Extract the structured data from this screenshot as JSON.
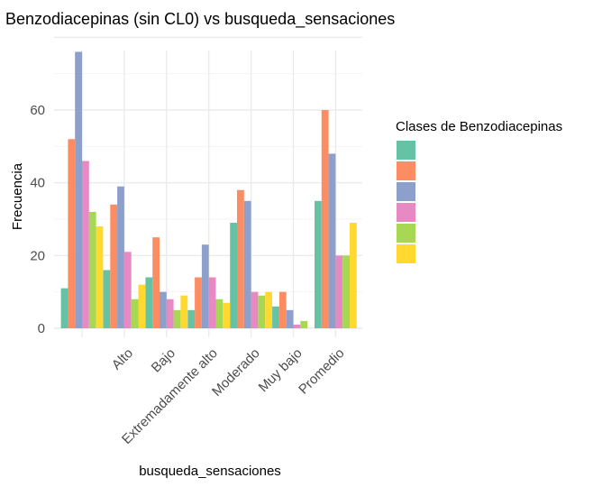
{
  "chart_data": {
    "type": "bar",
    "title": "Benzodiacepinas (sin CL0) vs busqueda_sensaciones",
    "xlabel": "busqueda_sensaciones",
    "ylabel": "Frecuencia",
    "categories": [
      "",
      "Alto",
      "Bajo",
      "Extremadamente alto",
      "Moderado",
      "Muy bajo",
      "Promedio"
    ],
    "ylim": [
      0,
      80
    ],
    "yticks": [
      0,
      20,
      40,
      60
    ],
    "grid": true,
    "legend_title": "Clases de Benzodiacepinas",
    "legend_position": "right",
    "series": [
      {
        "name": "",
        "color": "#66c2a5",
        "values": [
          11,
          16,
          14,
          5,
          29,
          6,
          35
        ]
      },
      {
        "name": "",
        "color": "#fc8d62",
        "values": [
          52,
          34,
          25,
          14,
          38,
          10,
          60
        ]
      },
      {
        "name": "",
        "color": "#8da0cb",
        "values": [
          76,
          39,
          10,
          23,
          35,
          5,
          48
        ]
      },
      {
        "name": "",
        "color": "#e78ac3",
        "values": [
          46,
          21,
          8,
          14,
          10,
          1,
          20
        ]
      },
      {
        "name": "",
        "color": "#a6d854",
        "values": [
          32,
          8,
          5,
          8,
          9,
          2,
          20
        ]
      },
      {
        "name": "",
        "color": "#ffd92f",
        "values": [
          28,
          12,
          9,
          7,
          10,
          0,
          29
        ]
      }
    ]
  }
}
